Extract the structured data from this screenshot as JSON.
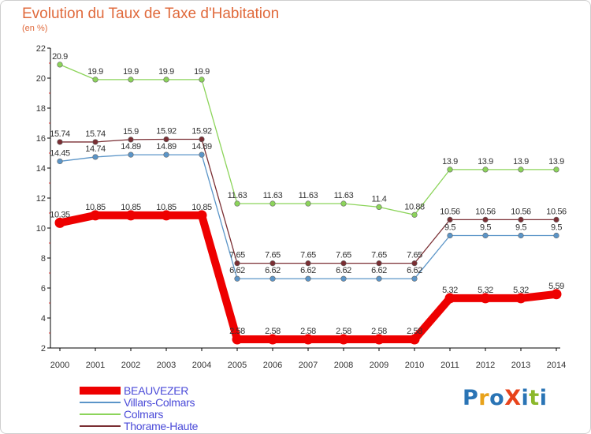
{
  "title": "Evolution du Taux de Taxe d'Habitation",
  "unit": "(en %)",
  "logo": {
    "text": "ProXiti",
    "colors": [
      "#2a74b5",
      "#e8a21b",
      "#2a74b5",
      "#e8431b",
      "#2a74b5",
      "#8cb82b",
      "#2a74b5"
    ]
  },
  "chart_data": {
    "type": "line",
    "title": "Evolution du Taux de Taxe d'Habitation",
    "ylabel": "(en %)",
    "xlabel": "",
    "ylim": [
      2,
      22
    ],
    "yticks": [
      2,
      4,
      6,
      8,
      10,
      12,
      14,
      16,
      18,
      20,
      22
    ],
    "grid": false,
    "legend_position": "bottom-left",
    "categories": [
      "2000",
      "2001",
      "2002",
      "2003",
      "2004",
      "2005",
      "2006",
      "2007",
      "2008",
      "2009",
      "2010",
      "2011",
      "2012",
      "2013",
      "2014"
    ],
    "series": [
      {
        "name": "BEAUVEZER",
        "color": "#ee0000",
        "bold": true,
        "values": [
          10.35,
          10.85,
          10.85,
          10.85,
          10.85,
          2.58,
          2.58,
          2.58,
          2.58,
          2.58,
          2.58,
          5.32,
          5.32,
          5.32,
          5.59
        ],
        "labels": [
          "10.35",
          "10.85",
          "10.85",
          "10.85",
          "10.85",
          "2.58",
          "2.58",
          "2.58",
          "2.58",
          "2.58",
          "2.58",
          "5.32",
          "5.32",
          "5.32",
          "5.59"
        ]
      },
      {
        "name": "Villars-Colmars",
        "color": "#5b95c8",
        "bold": false,
        "values": [
          14.45,
          14.74,
          14.89,
          14.89,
          14.89,
          6.62,
          6.62,
          6.62,
          6.62,
          6.62,
          6.62,
          9.5,
          9.5,
          9.5,
          9.5
        ],
        "labels": [
          "14.45",
          "14.74",
          "14.89",
          "14.89",
          "14.89",
          "6.62",
          "6.62",
          "6.62",
          "6.62",
          "6.62",
          "6.62",
          "9.5",
          "9.5",
          "9.5",
          "9.5"
        ]
      },
      {
        "name": "Colmars",
        "color": "#8cd45a",
        "bold": false,
        "values": [
          20.9,
          19.9,
          19.9,
          19.9,
          19.9,
          11.63,
          11.63,
          11.63,
          11.63,
          11.4,
          10.88,
          13.9,
          13.9,
          13.9,
          13.9
        ],
        "labels": [
          "20.9",
          "19.9",
          "19.9",
          "19.9",
          "19.9",
          "11.63",
          "11.63",
          "11.63",
          "11.63",
          "11.4",
          "10.88",
          "13.9",
          "13.9",
          "13.9",
          "13.9"
        ]
      },
      {
        "name": "Thorame-Haute",
        "color": "#7a2e33",
        "bold": false,
        "values": [
          15.74,
          15.74,
          15.9,
          15.92,
          15.92,
          7.65,
          7.65,
          7.65,
          7.65,
          7.65,
          7.65,
          10.56,
          10.56,
          10.56,
          10.56
        ],
        "labels": [
          "15.74",
          "15.74",
          "15.9",
          "15.92",
          "15.92",
          "7.65",
          "7.65",
          "7.65",
          "7.65",
          "7.65",
          "7.65",
          "10.56",
          "10.56",
          "10.56",
          "10.56"
        ]
      }
    ]
  }
}
